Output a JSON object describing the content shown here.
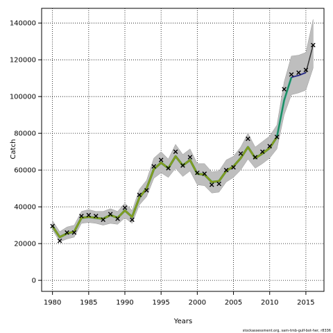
{
  "chart_data": {
    "type": "line",
    "xlabel": "Years",
    "ylabel": "Catch",
    "xlim": [
      1978.5,
      2017.5
    ],
    "ylim": [
      -6000,
      148000
    ],
    "x_ticks": [
      1980,
      1985,
      1990,
      1995,
      2000,
      2005,
      2010,
      2015
    ],
    "y_ticks": [
      0,
      20000,
      40000,
      60000,
      80000,
      100000,
      120000,
      140000
    ],
    "y_tick_labels": [
      "0",
      "20000",
      "40000",
      "60000",
      "80000",
      "100000",
      "120000",
      "140000"
    ],
    "grid": true,
    "credit": "stockassessment.org, sam-tmb-gulf-bot-her, r8336",
    "colors": {
      "band": "#bebebe",
      "early_line": "#8a9a1e",
      "early_line_under": "#4b9a3a",
      "late_line": "#1a8a5a",
      "late_line_under": "#5cb8b2",
      "final_line": "#2b2f8a",
      "last_segment": "#333333",
      "markers": "#000000"
    },
    "observed": {
      "marker": "x",
      "x": [
        1980,
        1981,
        1982,
        1983,
        1984,
        1985,
        1986,
        1987,
        1988,
        1989,
        1990,
        1991,
        1992,
        1993,
        1994,
        1995,
        1996,
        1997,
        1998,
        1999,
        2000,
        2001,
        2002,
        2003,
        2004,
        2005,
        2006,
        2007,
        2008,
        2009,
        2010,
        2011,
        2012,
        2013,
        2014,
        2015,
        2016
      ],
      "y": [
        29500,
        21500,
        26000,
        26000,
        35000,
        35500,
        35000,
        33000,
        36000,
        33500,
        39500,
        33000,
        46500,
        49000,
        62000,
        65500,
        61000,
        70000,
        62500,
        67000,
        58500,
        58000,
        52000,
        52500,
        60000,
        61500,
        69000,
        77000,
        67000,
        70000,
        73000,
        78000,
        104000,
        112000,
        113000,
        114500,
        128000
      ]
    },
    "estimate": {
      "x": [
        1980,
        1981,
        1982,
        1983,
        1984,
        1985,
        1986,
        1987,
        1988,
        1989,
        1990,
        1991,
        1992,
        1993,
        1994,
        1995,
        1996,
        1997,
        1998,
        1999,
        2000,
        2001,
        2002,
        2003,
        2004,
        2005,
        2006,
        2007,
        2008,
        2009,
        2010,
        2011,
        2012,
        2013,
        2014,
        2015,
        2016
      ],
      "y": [
        29500,
        23500,
        25500,
        26500,
        34000,
        34500,
        34000,
        33500,
        35500,
        34000,
        38000,
        34500,
        45000,
        50000,
        60500,
        64000,
        61000,
        67500,
        62500,
        65500,
        58000,
        57500,
        53500,
        54000,
        59500,
        62000,
        66500,
        72500,
        66500,
        69000,
        72000,
        78000,
        98000,
        110500,
        111500,
        113000,
        128000
      ],
      "lower": [
        27500,
        21000,
        22500,
        23500,
        31000,
        31500,
        31000,
        30000,
        31000,
        30500,
        34000,
        31000,
        41000,
        45500,
        55500,
        58500,
        56000,
        61000,
        56500,
        59500,
        52000,
        51500,
        47500,
        48000,
        53500,
        56000,
        60000,
        66000,
        61000,
        63500,
        66500,
        71500,
        90000,
        101000,
        102000,
        103500,
        115500
      ],
      "upper": [
        32500,
        26500,
        29000,
        30000,
        37500,
        38500,
        37500,
        37500,
        39000,
        37500,
        42000,
        38000,
        49500,
        54500,
        66500,
        70000,
        66000,
        74000,
        68500,
        71500,
        63500,
        63500,
        59000,
        59500,
        65500,
        67500,
        72500,
        80000,
        72500,
        75500,
        78500,
        84500,
        108000,
        122000,
        122500,
        124000,
        142000
      ]
    }
  }
}
